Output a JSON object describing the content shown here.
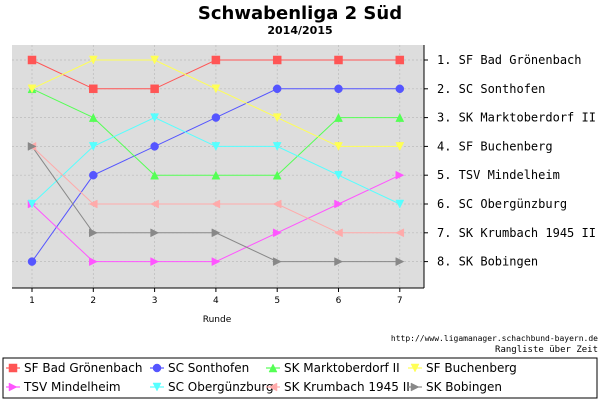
{
  "chart_data": {
    "type": "line",
    "title": "Schwabenliga 2 Süd",
    "subtitle": "2014/2015",
    "xlabel": "Runde",
    "x": [
      1,
      2,
      3,
      4,
      5,
      6,
      7
    ],
    "ylim": [
      1,
      8
    ],
    "y_inverted": true,
    "grid": true,
    "rank_labels": [
      "1. SF Bad Grönenbach",
      "2. SC Sonthofen",
      "3. SK Marktoberdorf II",
      "4. SF Buchenberg",
      "5. TSV Mindelheim",
      "6. SC Obergünzburg",
      "7. SK Krumbach 1945 II",
      "8. SK Bobingen"
    ],
    "legend_position": "bottom",
    "series": [
      {
        "name": "SF Bad Grönenbach",
        "color": "#ff5555",
        "marker": "square",
        "values": [
          1,
          2,
          2,
          1,
          1,
          1,
          1
        ]
      },
      {
        "name": "SC Sonthofen",
        "color": "#5555ff",
        "marker": "circle",
        "values": [
          8,
          5,
          4,
          3,
          2,
          2,
          2
        ]
      },
      {
        "name": "SK Marktoberdorf II",
        "color": "#55ff55",
        "marker": "triangle-up",
        "values": [
          2,
          3,
          5,
          5,
          5,
          3,
          3
        ]
      },
      {
        "name": "SF Buchenberg",
        "color": "#ffff55",
        "marker": "triangle-down",
        "values": [
          2,
          1,
          1,
          2,
          3,
          4,
          4
        ]
      },
      {
        "name": "TSV Mindelheim",
        "color": "#ff55ff",
        "marker": "triangle-right",
        "values": [
          6,
          8,
          8,
          8,
          7,
          6,
          5
        ]
      },
      {
        "name": "SC Obergünzburg",
        "color": "#55ffff",
        "marker": "triangle-down",
        "values": [
          6,
          4,
          3,
          4,
          4,
          5,
          6
        ]
      },
      {
        "name": "SK Krumbach 1945 II",
        "color": "#ffaaaa",
        "marker": "triangle-left",
        "values": [
          4,
          6,
          6,
          6,
          6,
          7,
          7
        ]
      },
      {
        "name": "SK Bobingen",
        "color": "#888888",
        "marker": "triangle-right",
        "values": [
          4,
          7,
          7,
          7,
          8,
          8,
          8
        ]
      }
    ]
  },
  "footer": {
    "url": "http://www.ligamanager.schachbund-bayern.de",
    "caption": "Rangliste über Zeit"
  }
}
